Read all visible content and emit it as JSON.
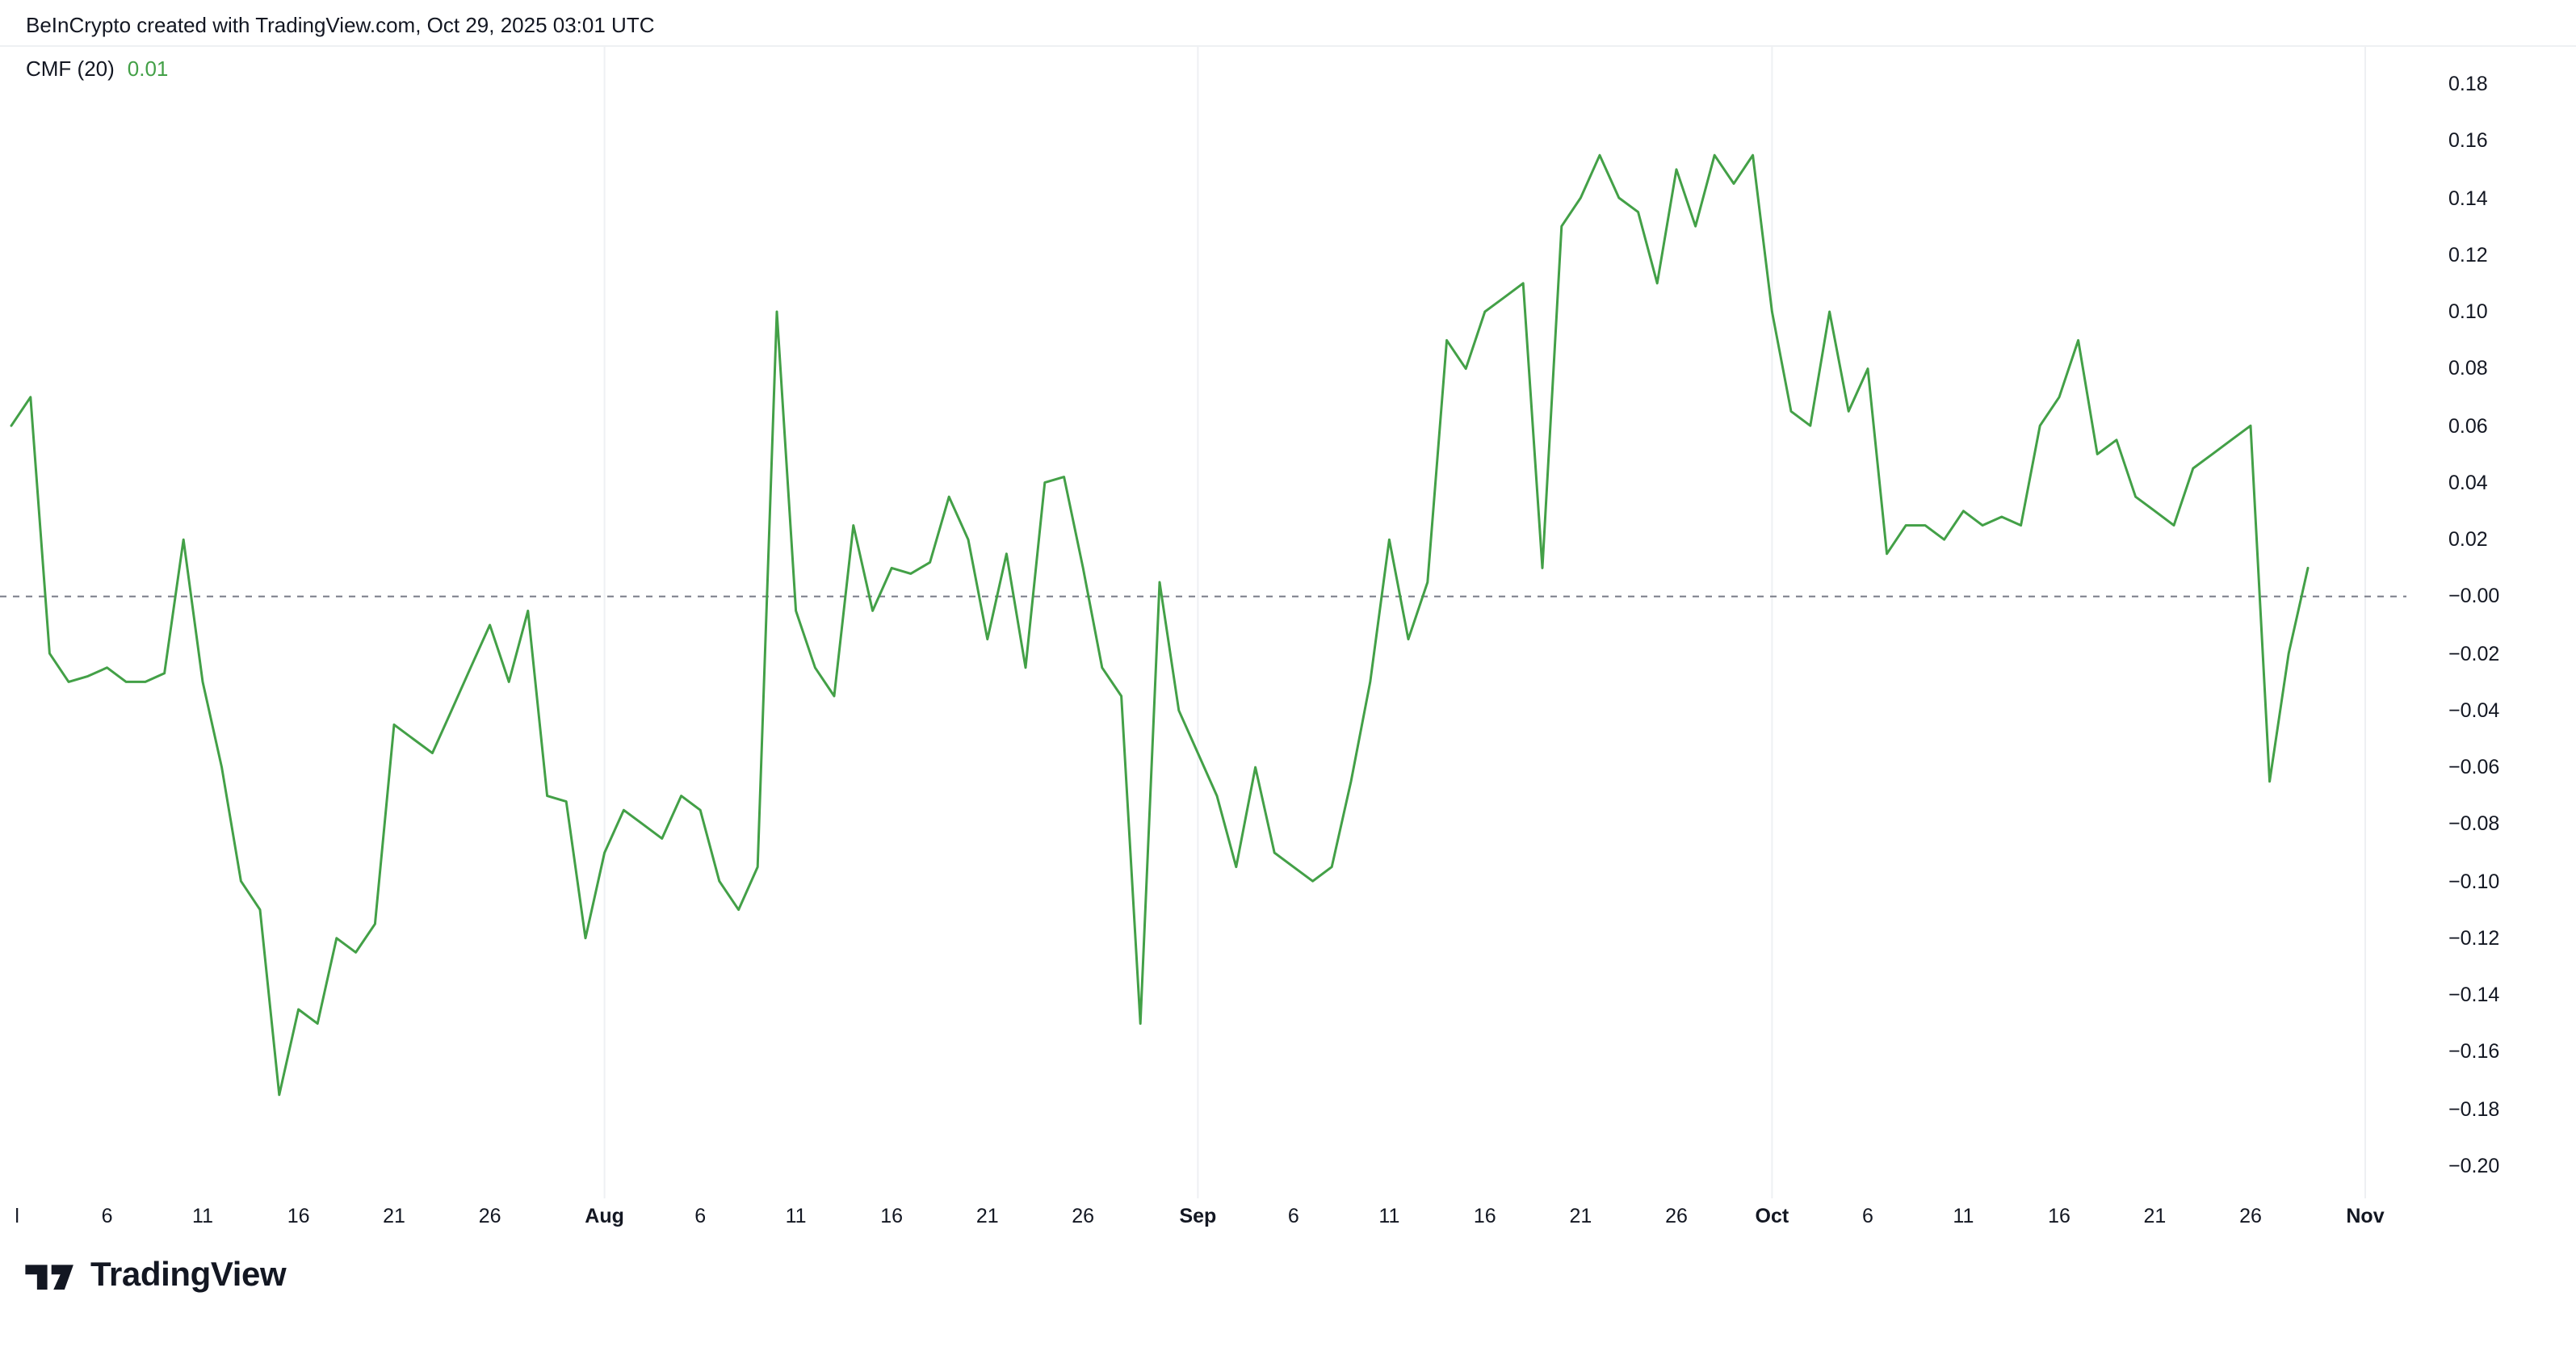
{
  "header": {
    "attribution": "BeInCrypto created with TradingView.com, Oct 29, 2025 03:01 UTC"
  },
  "legend": {
    "indicator": "CMF (20)",
    "value": "0.01",
    "value_color": "#43a047"
  },
  "footer": {
    "brand": "TradingView"
  },
  "colors": {
    "background": "#ffffff",
    "text": "#131722",
    "line": "#43a047",
    "zero_line": "#787b86",
    "grid": "#eef0f3"
  },
  "chart_data": {
    "type": "line",
    "title": "CMF (20)",
    "indicator_value": 0.01,
    "legend_position": "top-left",
    "grid": "vertical-month-lines-only",
    "baseline": 0,
    "grid_month_days": [
      31,
      62,
      92,
      123
    ],
    "series": [
      {
        "name": "CMF (20)",
        "color": "#43a047",
        "values": [
          0.06,
          0.07,
          -0.02,
          -0.03,
          -0.028,
          -0.025,
          -0.03,
          -0.03,
          -0.027,
          0.02,
          -0.03,
          -0.06,
          -0.1,
          -0.11,
          -0.175,
          -0.145,
          -0.15,
          -0.12,
          -0.125,
          -0.115,
          -0.045,
          -0.05,
          -0.055,
          -0.04,
          -0.025,
          -0.01,
          -0.03,
          -0.005,
          -0.07,
          -0.072,
          -0.12,
          -0.09,
          -0.075,
          -0.08,
          -0.085,
          -0.07,
          -0.075,
          -0.1,
          -0.11,
          -0.095,
          0.1,
          -0.005,
          -0.025,
          -0.035,
          0.025,
          -0.005,
          0.01,
          0.008,
          0.012,
          0.035,
          0.02,
          -0.015,
          0.015,
          -0.025,
          0.04,
          0.042,
          0.01,
          -0.025,
          -0.035,
          -0.15,
          0.005,
          -0.04,
          -0.055,
          -0.07,
          -0.095,
          -0.06,
          -0.09,
          -0.095,
          -0.1,
          -0.095,
          -0.065,
          -0.03,
          0.02,
          -0.015,
          0.005,
          0.09,
          0.08,
          0.1,
          0.105,
          0.11,
          0.01,
          0.13,
          0.14,
          0.155,
          0.14,
          0.135,
          0.11,
          0.15,
          0.13,
          0.155,
          0.145,
          0.155,
          0.1,
          0.065,
          0.06,
          0.1,
          0.065,
          0.08,
          0.015,
          0.025,
          0.025,
          0.02,
          0.03,
          0.025,
          0.028,
          0.025,
          0.06,
          0.07,
          0.09,
          0.05,
          0.055,
          0.035,
          0.03,
          0.025,
          0.045,
          0.05,
          0.055,
          0.06,
          -0.065,
          -0.02,
          0.01
        ]
      }
    ],
    "x": {
      "dates": [
        "Jul 1",
        "Jul 2",
        "Jul 3",
        "Jul 4",
        "Jul 5",
        "Jul 6",
        "Jul 7",
        "Jul 8",
        "Jul 9",
        "Jul 10",
        "Jul 11",
        "Jul 12",
        "Jul 13",
        "Jul 14",
        "Jul 15",
        "Jul 16",
        "Jul 17",
        "Jul 18",
        "Jul 19",
        "Jul 20",
        "Jul 21",
        "Jul 22",
        "Jul 23",
        "Jul 24",
        "Jul 25",
        "Jul 26",
        "Jul 27",
        "Jul 28",
        "Jul 29",
        "Jul 30",
        "Jul 31",
        "Aug 1",
        "Aug 2",
        "Aug 3",
        "Aug 4",
        "Aug 5",
        "Aug 6",
        "Aug 7",
        "Aug 8",
        "Aug 9",
        "Aug 10",
        "Aug 11",
        "Aug 12",
        "Aug 13",
        "Aug 14",
        "Aug 15",
        "Aug 16",
        "Aug 17",
        "Aug 18",
        "Aug 19",
        "Aug 20",
        "Aug 21",
        "Aug 22",
        "Aug 23",
        "Aug 24",
        "Aug 25",
        "Aug 26",
        "Aug 27",
        "Aug 28",
        "Aug 29",
        "Aug 30",
        "Aug 31",
        "Sep 1",
        "Sep 2",
        "Sep 3",
        "Sep 4",
        "Sep 5",
        "Sep 6",
        "Sep 7",
        "Sep 8",
        "Sep 9",
        "Sep 10",
        "Sep 11",
        "Sep 12",
        "Sep 13",
        "Sep 14",
        "Sep 15",
        "Sep 16",
        "Sep 17",
        "Sep 18",
        "Sep 19",
        "Sep 20",
        "Sep 21",
        "Sep 22",
        "Sep 23",
        "Sep 24",
        "Sep 25",
        "Sep 26",
        "Sep 27",
        "Sep 28",
        "Sep 29",
        "Sep 30",
        "Oct 1",
        "Oct 2",
        "Oct 3",
        "Oct 4",
        "Oct 5",
        "Oct 6",
        "Oct 7",
        "Oct 8",
        "Oct 9",
        "Oct 10",
        "Oct 11",
        "Oct 12",
        "Oct 13",
        "Oct 14",
        "Oct 15",
        "Oct 16",
        "Oct 17",
        "Oct 18",
        "Oct 19",
        "Oct 20",
        "Oct 21",
        "Oct 22",
        "Oct 23",
        "Oct 24",
        "Oct 25",
        "Oct 26",
        "Oct 27",
        "Oct 28",
        "Oct 29"
      ],
      "ticks": [
        {
          "label": "l",
          "day": 0.3,
          "bold": false
        },
        {
          "label": "6",
          "day": 5,
          "bold": false
        },
        {
          "label": "11",
          "day": 10,
          "bold": false
        },
        {
          "label": "16",
          "day": 15,
          "bold": false
        },
        {
          "label": "21",
          "day": 20,
          "bold": false
        },
        {
          "label": "26",
          "day": 25,
          "bold": false
        },
        {
          "label": "Aug",
          "day": 31,
          "bold": true
        },
        {
          "label": "6",
          "day": 36,
          "bold": false
        },
        {
          "label": "11",
          "day": 41,
          "bold": false
        },
        {
          "label": "16",
          "day": 46,
          "bold": false
        },
        {
          "label": "21",
          "day": 51,
          "bold": false
        },
        {
          "label": "26",
          "day": 56,
          "bold": false
        },
        {
          "label": "Sep",
          "day": 62,
          "bold": true
        },
        {
          "label": "6",
          "day": 67,
          "bold": false
        },
        {
          "label": "11",
          "day": 72,
          "bold": false
        },
        {
          "label": "16",
          "day": 77,
          "bold": false
        },
        {
          "label": "21",
          "day": 82,
          "bold": false
        },
        {
          "label": "26",
          "day": 87,
          "bold": false
        },
        {
          "label": "Oct",
          "day": 92,
          "bold": true
        },
        {
          "label": "6",
          "day": 97,
          "bold": false
        },
        {
          "label": "11",
          "day": 102,
          "bold": false
        },
        {
          "label": "16",
          "day": 107,
          "bold": false
        },
        {
          "label": "21",
          "day": 112,
          "bold": false
        },
        {
          "label": "26",
          "day": 117,
          "bold": false
        },
        {
          "label": "Nov",
          "day": 123,
          "bold": true
        }
      ]
    },
    "y_axis": {
      "labels": [
        "0.18",
        "0.16",
        "0.14",
        "0.12",
        "0.10",
        "0.08",
        "0.06",
        "0.04",
        "0.02",
        "−0.00",
        "−0.02",
        "−0.04",
        "−0.06",
        "−0.08",
        "−0.10",
        "−0.12",
        "−0.14",
        "−0.16",
        "−0.18",
        "−0.20"
      ],
      "values": [
        0.18,
        0.16,
        0.14,
        0.12,
        0.1,
        0.08,
        0.06,
        0.04,
        0.02,
        0,
        -0.02,
        -0.04,
        -0.06,
        -0.08,
        -0.1,
        -0.12,
        -0.14,
        -0.16,
        -0.18,
        -0.2
      ]
    },
    "ylim": [
      -0.21,
      0.19
    ],
    "xlabel": "",
    "ylabel": ""
  }
}
